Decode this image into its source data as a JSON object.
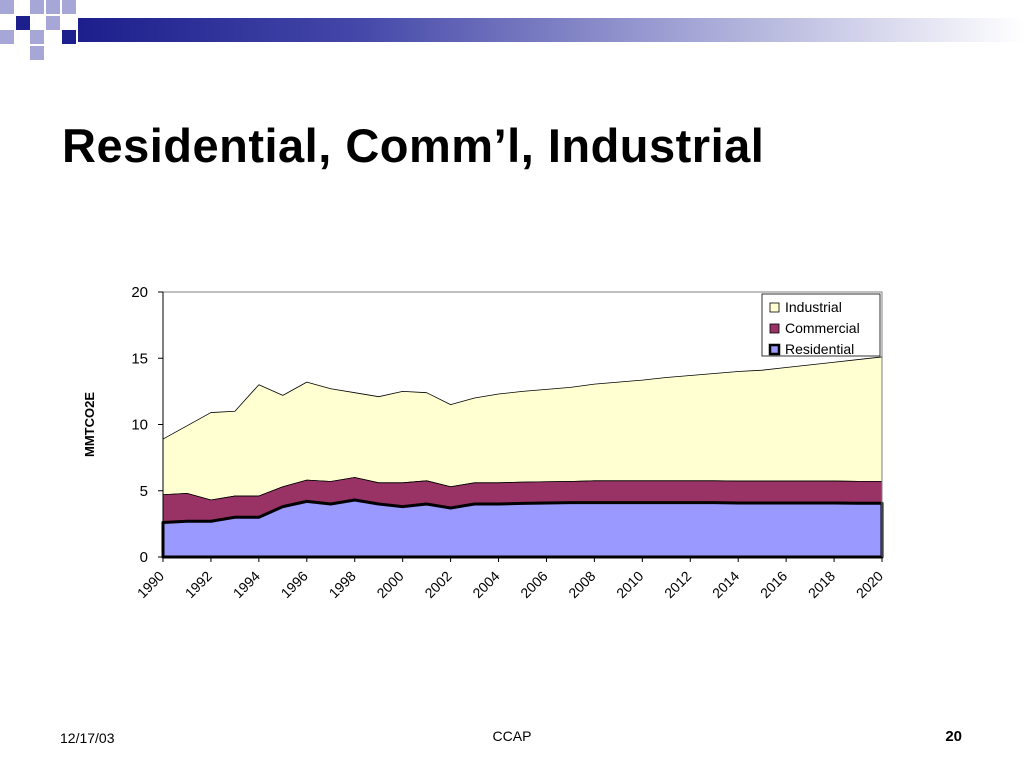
{
  "slide": {
    "title": "Residential, Comm’l, Industrial"
  },
  "footer": {
    "date": "12/17/03",
    "center": "CCAP",
    "page_number": "20"
  },
  "colors": {
    "industrial": "#ffffd2",
    "commercial": "#993366",
    "residential": "#9999ff",
    "deco_dark": "#1c1f8c",
    "deco_light": "#a6a7d6"
  },
  "chart_data": {
    "type": "area",
    "stacked": true,
    "ylabel": "MMTCO2E",
    "xlabel": "",
    "ylim": [
      0,
      20
    ],
    "yticks": [
      "0",
      "5",
      "10",
      "15",
      "20"
    ],
    "xticks": [
      "1990",
      "1992",
      "1994",
      "1996",
      "1998",
      "2000",
      "2002",
      "2004",
      "2006",
      "2008",
      "2010",
      "2012",
      "2014",
      "2016",
      "2018",
      "2020"
    ],
    "legend_position": "top-right",
    "x": [
      1990,
      1991,
      1992,
      1993,
      1994,
      1995,
      1996,
      1997,
      1998,
      1999,
      2000,
      2001,
      2002,
      2003,
      2004,
      2005,
      2006,
      2007,
      2008,
      2009,
      2010,
      2011,
      2012,
      2013,
      2014,
      2015,
      2016,
      2017,
      2018,
      2019,
      2020
    ],
    "series": [
      {
        "name": "Residential",
        "color_key": "residential",
        "values": [
          2.6,
          2.7,
          2.7,
          3.0,
          3.0,
          3.8,
          4.2,
          4.0,
          4.3,
          4.0,
          3.8,
          4.0,
          3.7,
          4.0,
          4.0,
          4.05,
          4.08,
          4.1,
          4.1,
          4.1,
          4.1,
          4.1,
          4.1,
          4.1,
          4.08,
          4.08,
          4.08,
          4.08,
          4.08,
          4.06,
          4.06
        ]
      },
      {
        "name": "Commercial",
        "color_key": "commercial",
        "values": [
          2.1,
          2.1,
          1.6,
          1.6,
          1.6,
          1.5,
          1.6,
          1.7,
          1.7,
          1.6,
          1.8,
          1.75,
          1.6,
          1.6,
          1.6,
          1.6,
          1.6,
          1.6,
          1.65,
          1.65,
          1.65,
          1.65,
          1.65,
          1.65,
          1.65,
          1.65,
          1.65,
          1.65,
          1.65,
          1.65,
          1.65
        ]
      },
      {
        "name": "Industrial",
        "color_key": "industrial",
        "values": [
          4.2,
          5.1,
          6.6,
          6.4,
          8.4,
          6.9,
          7.4,
          7.0,
          6.4,
          6.5,
          6.9,
          6.65,
          6.2,
          6.4,
          6.7,
          6.85,
          6.97,
          7.1,
          7.3,
          7.45,
          7.6,
          7.8,
          7.95,
          8.1,
          8.27,
          8.37,
          8.57,
          8.77,
          8.97,
          9.19,
          9.39
        ]
      }
    ]
  }
}
